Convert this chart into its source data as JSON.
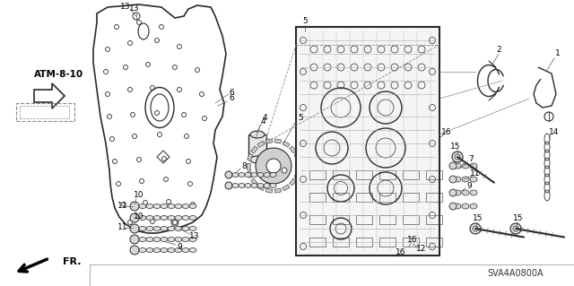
{
  "fig_width": 6.4,
  "fig_height": 3.19,
  "dpi": 100,
  "background_color": "#ffffff",
  "line_color": "#2a2a2a",
  "text_color": "#000000",
  "catalog_number": "SVA4A0800A",
  "atm_label": "ATM-8-10"
}
